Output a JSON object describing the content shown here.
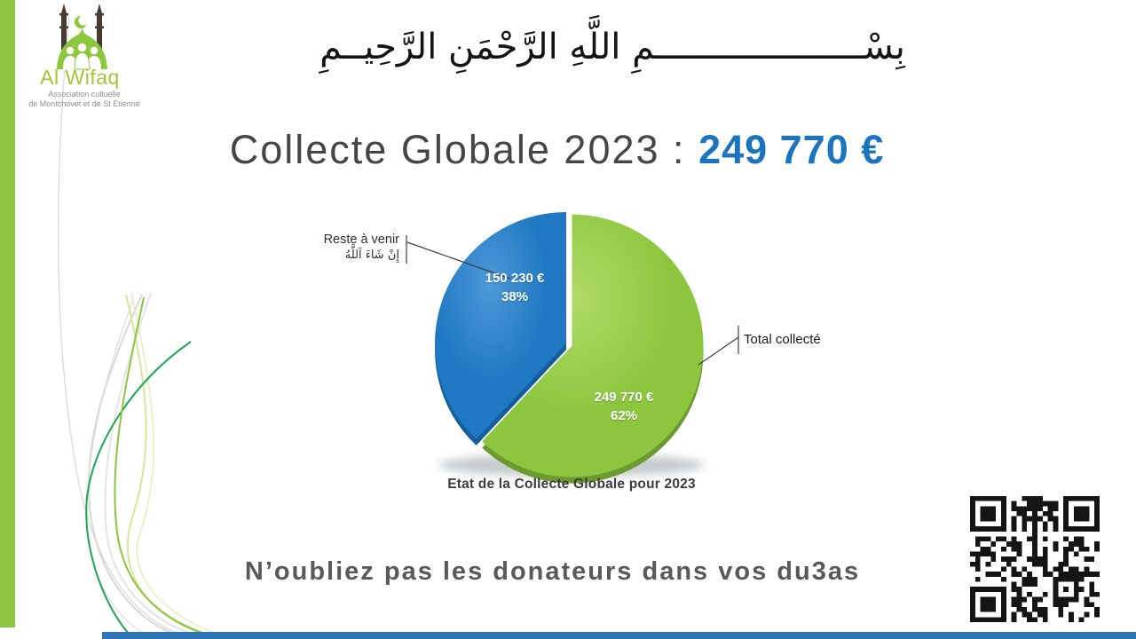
{
  "logo": {
    "title": "Al Wifaq",
    "subtitle_line1": "Association cultuelle",
    "subtitle_line2": "de Montchovet et de St Etienne"
  },
  "bismillah": "بِسْــــــــــــــــــــمِ اللَّهِ الرَّحْمَنِ الرَّحِيــمِ",
  "title": {
    "text": "Collecte Globale 2023 :",
    "amount": "249 770 €"
  },
  "chart_data": {
    "type": "pie",
    "title": "Etat de la Collecte Globale pour 2023",
    "start_angle_deg": 0,
    "direction": "clockwise",
    "slices": [
      {
        "label": "Total collecté",
        "callout": "Total collecté",
        "value": 249770,
        "value_label": "249 770 €",
        "percent": 62,
        "percent_label": "62%",
        "color_light": "#AEDB66",
        "color": "#8CC63F",
        "color_dark": "#6B9A31",
        "explode": 7
      },
      {
        "label": "Reste à venir",
        "callout_line1": "Reste à venir",
        "callout_line2": "إِنْ شَاءَ آللَّهُ",
        "value": 150230,
        "value_label": "150 230 €",
        "percent": 38,
        "percent_label": "38%",
        "color_light": "#4C99D8",
        "color": "#1F78C1",
        "color_dark": "#135E9C",
        "explode": 0
      }
    ]
  },
  "footer": {
    "message": "N’oubliez pas les donateurs dans vos du3as"
  },
  "colors": {
    "accent_green": "#8DC73F",
    "title_gray": "#454545",
    "title_blue": "#1B74BE",
    "footer_gray": "#595959",
    "bottom_bar_blue": "#2E75B6"
  }
}
